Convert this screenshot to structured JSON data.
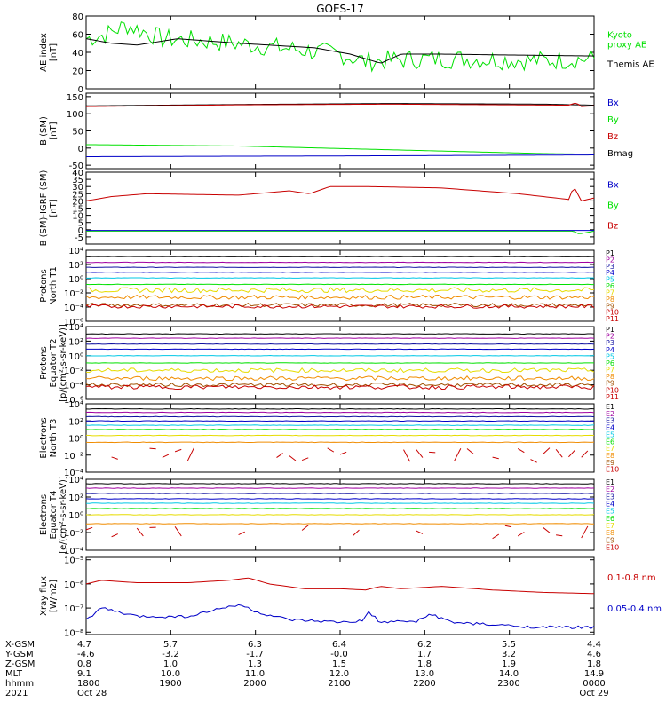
{
  "title": "GOES-17",
  "colors": {
    "black": "#000000",
    "green": "#00e000",
    "blue": "#0000c8",
    "red": "#c80000",
    "navy": "#1010a0",
    "cyan": "#00c8e6",
    "ltgreen": "#00e000",
    "yellow": "#e6dc00",
    "orange": "#f08c00",
    "brown": "#a05000",
    "purple": "#a000a0"
  },
  "chart_data": [
    {
      "type": "line",
      "id": "ae",
      "ylabel": [
        "AE index",
        "[nT]"
      ],
      "ylim": [
        0,
        80
      ],
      "yticks": [
        "0",
        "20",
        "40",
        "60",
        "80"
      ],
      "series": [
        {
          "name": "Kyoto proxy AE",
          "color": "green",
          "style": "noisy",
          "amp": 11,
          "knots": [
            [
              0,
              55
            ],
            [
              0.04,
              60
            ],
            [
              0.08,
              70
            ],
            [
              0.15,
              55
            ],
            [
              0.25,
              52
            ],
            [
              0.33,
              48
            ],
            [
              0.4,
              44
            ],
            [
              0.5,
              38
            ],
            [
              0.55,
              30
            ],
            [
              0.62,
              32
            ],
            [
              0.7,
              33
            ],
            [
              0.8,
              32
            ],
            [
              0.9,
              31
            ],
            [
              1,
              33
            ]
          ]
        },
        {
          "name": "Themis AE",
          "color": "black",
          "style": "smooth",
          "knots": [
            [
              0,
              55
            ],
            [
              0.05,
              50
            ],
            [
              0.1,
              48
            ],
            [
              0.18,
              55
            ],
            [
              0.3,
              50
            ],
            [
              0.45,
              45
            ],
            [
              0.52,
              38
            ],
            [
              0.58,
              28
            ],
            [
              0.62,
              38
            ],
            [
              0.7,
              38
            ],
            [
              0.85,
              37
            ],
            [
              1,
              36
            ]
          ]
        }
      ],
      "legend": [
        {
          "text": [
            "Kyoto",
            "proxy AE"
          ],
          "color": "green"
        },
        {
          "text": [
            "Themis AE"
          ],
          "color": "black"
        }
      ]
    },
    {
      "type": "line",
      "id": "bsm",
      "ylabel": [
        "B (SM)",
        "[nT]"
      ],
      "ylim": [
        -60,
        160
      ],
      "yticks": [
        "-50",
        "0",
        "50",
        "100",
        "150"
      ],
      "series": [
        {
          "name": "Bmag",
          "color": "black",
          "style": "smooth",
          "knots": [
            [
              0,
              123
            ],
            [
              0.3,
              127
            ],
            [
              0.6,
              130
            ],
            [
              0.9,
              128
            ],
            [
              1,
              125
            ]
          ]
        },
        {
          "name": "Bz",
          "color": "red",
          "style": "smooth",
          "knots": [
            [
              0,
              121
            ],
            [
              0.3,
              126
            ],
            [
              0.6,
              128
            ],
            [
              0.95,
              125
            ],
            [
              0.965,
              132
            ],
            [
              0.975,
              121
            ],
            [
              1,
              123
            ]
          ]
        },
        {
          "name": "By",
          "color": "green",
          "style": "smooth",
          "knots": [
            [
              0,
              10
            ],
            [
              0.3,
              6
            ],
            [
              0.6,
              -5
            ],
            [
              0.9,
              -16
            ],
            [
              1,
              -18
            ]
          ]
        },
        {
          "name": "Bx",
          "color": "blue",
          "style": "smooth",
          "knots": [
            [
              0,
              -25
            ],
            [
              0.5,
              -23
            ],
            [
              1,
              -20
            ]
          ]
        }
      ],
      "legend": [
        {
          "text": [
            "Bx"
          ],
          "color": "blue"
        },
        {
          "text": [
            "By"
          ],
          "color": "green"
        },
        {
          "text": [
            "Bz"
          ],
          "color": "red"
        },
        {
          "text": [
            "Bmag"
          ],
          "color": "black"
        }
      ]
    },
    {
      "type": "line",
      "id": "bigrf",
      "ylabel": [
        "B (SM)-IGRF (SM)",
        "[nT]"
      ],
      "ylim": [
        -10,
        40
      ],
      "yticks": [
        "-5",
        "0",
        "5",
        "10",
        "15",
        "20",
        "25",
        "30",
        "35",
        "40"
      ],
      "series": [
        {
          "name": "Bz",
          "color": "red",
          "style": "smooth",
          "knots": [
            [
              0,
              20
            ],
            [
              0.05,
              23
            ],
            [
              0.12,
              25
            ],
            [
              0.3,
              24
            ],
            [
              0.4,
              27
            ],
            [
              0.44,
              25
            ],
            [
              0.48,
              30
            ],
            [
              0.55,
              30
            ],
            [
              0.7,
              29
            ],
            [
              0.85,
              25
            ],
            [
              0.95,
              21
            ],
            [
              0.96,
              30
            ],
            [
              0.975,
              20
            ],
            [
              1,
              22
            ]
          ]
        },
        {
          "name": "By",
          "color": "green",
          "style": "smooth",
          "knots": [
            [
              0,
              -1
            ],
            [
              0.5,
              -1
            ],
            [
              0.96,
              -1
            ],
            [
              0.97,
              -3
            ],
            [
              1,
              -1
            ]
          ]
        },
        {
          "name": "Bx",
          "color": "blue",
          "style": "smooth",
          "knots": [
            [
              0,
              -0.5
            ],
            [
              1,
              -0.5
            ]
          ]
        }
      ],
      "legend": [
        {
          "text": [
            "Bx"
          ],
          "color": "blue"
        },
        {
          "text": [
            "By"
          ],
          "color": "green"
        },
        {
          "text": [
            "Bz"
          ],
          "color": "red"
        }
      ]
    },
    {
      "type": "line",
      "id": "pn",
      "log": true,
      "ylabel": [
        "Protons",
        "North T1"
      ],
      "ylim": [
        -6,
        4
      ],
      "yticks": [
        "10⁴",
        "10²",
        "10⁰",
        "10⁻²",
        "10⁻⁴",
        "10⁻⁶"
      ],
      "series": [
        {
          "name": "P1",
          "color": "black",
          "level": 3.1
        },
        {
          "name": "P2",
          "color": "purple",
          "level": 2.3
        },
        {
          "name": "P3",
          "color": "navy",
          "level": 1.6
        },
        {
          "name": "P4",
          "color": "blue",
          "level": 0.9
        },
        {
          "name": "P5",
          "color": "cyan",
          "level": 0.1
        },
        {
          "name": "P6",
          "color": "ltgreen",
          "level": -0.8
        },
        {
          "name": "P7",
          "color": "yellow",
          "level": -1.6,
          "jitter": 0.35
        },
        {
          "name": "P8",
          "color": "orange",
          "level": -2.6,
          "jitter": 0.3
        },
        {
          "name": "P9",
          "color": "brown",
          "level": -3.7,
          "jitter": 0.25
        },
        {
          "name": "P10",
          "color": "red",
          "level": -3.9,
          "jitter": 0.25
        }
      ],
      "labels": [
        "P1",
        "P2",
        "P3",
        "P4",
        "P5",
        "P6",
        "P7",
        "P8",
        "P9",
        "P10",
        "P11"
      ]
    },
    {
      "type": "line",
      "id": "pe",
      "log": true,
      "ylabel": [
        "Protons",
        "Equator T2",
        "[p/(cm²-s-sr-keV)]"
      ],
      "ylim": [
        -6,
        4
      ],
      "yticks": [
        "10⁴",
        "10²",
        "10⁰",
        "10⁻²",
        "10⁻⁴",
        "10⁻⁶"
      ],
      "series": [
        {
          "name": "P1",
          "color": "black",
          "level": 3.0
        },
        {
          "name": "P2",
          "color": "purple",
          "level": 2.4
        },
        {
          "name": "P3",
          "color": "navy",
          "level": 1.6
        },
        {
          "name": "P4",
          "color": "blue",
          "level": 0.9
        },
        {
          "name": "P5",
          "color": "cyan",
          "level": 0.0
        },
        {
          "name": "P6",
          "color": "ltgreen",
          "level": -1.0
        },
        {
          "name": "P7",
          "color": "yellow",
          "level": -2.0,
          "jitter": 0.3
        },
        {
          "name": "P8",
          "color": "orange",
          "level": -3.1,
          "jitter": 0.3
        },
        {
          "name": "P9",
          "color": "brown",
          "level": -4.0,
          "jitter": 0.25
        },
        {
          "name": "P10",
          "color": "red",
          "level": -4.3,
          "jitter": 0.3
        }
      ],
      "labels": [
        "P1",
        "P2",
        "P3",
        "P4",
        "P5",
        "P6",
        "P7",
        "P8",
        "P9",
        "P10",
        "P11"
      ]
    },
    {
      "type": "line",
      "id": "en",
      "log": true,
      "ylabel": [
        "Electrons",
        "North T3"
      ],
      "ylim": [
        -4,
        4
      ],
      "yticks": [
        "10⁴",
        "10²",
        "10⁰",
        "10⁻²",
        "10⁻⁴"
      ],
      "series": [
        {
          "name": "E1",
          "color": "black",
          "level": 3.4
        },
        {
          "name": "E2",
          "color": "purple",
          "level": 3.0
        },
        {
          "name": "E3",
          "color": "navy",
          "level": 2.5
        },
        {
          "name": "E4",
          "color": "blue",
          "level": 2.0
        },
        {
          "name": "E5",
          "color": "cyan",
          "level": 1.5
        },
        {
          "name": "E6",
          "color": "ltgreen",
          "level": 1.0
        },
        {
          "name": "E7",
          "color": "yellow",
          "level": 0.3
        },
        {
          "name": "E8",
          "color": "orange",
          "level": -0.5
        },
        {
          "name": "E9",
          "color": "red",
          "level": -2.0,
          "jitter": 0.9,
          "gaps": true
        }
      ],
      "labels": [
        "E1",
        "E2",
        "E3",
        "E4",
        "E5",
        "E6",
        "E7",
        "E8",
        "E9",
        "E10"
      ]
    },
    {
      "type": "line",
      "id": "ee",
      "log": true,
      "ylabel": [
        "Electrons",
        "Equator T4",
        "[e/(cm²-s-sr-keV)]"
      ],
      "ylim": [
        -4,
        4
      ],
      "yticks": [
        "10⁴",
        "10²",
        "10⁰",
        "10⁻²",
        "10⁻⁴"
      ],
      "series": [
        {
          "name": "E1",
          "color": "black",
          "level": 3.5
        },
        {
          "name": "E2",
          "color": "purple",
          "level": 3.0
        },
        {
          "name": "E3",
          "color": "navy",
          "level": 2.4
        },
        {
          "name": "E4",
          "color": "blue",
          "level": 1.8
        },
        {
          "name": "E5",
          "color": "cyan",
          "level": 1.3
        },
        {
          "name": "E6",
          "color": "ltgreen",
          "level": 0.7
        },
        {
          "name": "E7",
          "color": "yellow",
          "level": 0.0
        },
        {
          "name": "E8",
          "color": "orange",
          "level": -1.0
        },
        {
          "name": "E9",
          "color": "red",
          "level": -1.9,
          "jitter": 0.8,
          "gaps": true
        }
      ],
      "labels": [
        "E1",
        "E2",
        "E3",
        "E4",
        "E5",
        "E6",
        "E7",
        "E8",
        "E9",
        "E10"
      ]
    },
    {
      "type": "line",
      "id": "xray",
      "log": true,
      "ylabel": [
        "Xray flux",
        "[W/m2]"
      ],
      "ylim": [
        -8.1,
        -4.9
      ],
      "yticks": [
        "10⁻⁵",
        "10⁻⁶",
        "10⁻⁷",
        "10⁻⁸"
      ],
      "ytickvals": [
        -5,
        -6,
        -7,
        -8
      ],
      "series": [
        {
          "name": "0.1-0.8 nm",
          "color": "red",
          "style": "smooth",
          "knots": [
            [
              0,
              -6.0
            ],
            [
              0.03,
              -5.85
            ],
            [
              0.1,
              -5.95
            ],
            [
              0.2,
              -5.95
            ],
            [
              0.28,
              -5.85
            ],
            [
              0.32,
              -5.75
            ],
            [
              0.36,
              -6.0
            ],
            [
              0.43,
              -6.2
            ],
            [
              0.5,
              -6.2
            ],
            [
              0.55,
              -6.25
            ],
            [
              0.58,
              -6.1
            ],
            [
              0.62,
              -6.2
            ],
            [
              0.7,
              -6.1
            ],
            [
              0.8,
              -6.25
            ],
            [
              0.9,
              -6.35
            ],
            [
              1,
              -6.4
            ]
          ]
        },
        {
          "name": "0.05-0.4 nm",
          "color": "blue",
          "style": "noisy",
          "amp": 0.06,
          "knots": [
            [
              0,
              -7.5
            ],
            [
              0.03,
              -7.0
            ],
            [
              0.1,
              -7.35
            ],
            [
              0.2,
              -7.35
            ],
            [
              0.26,
              -7.05
            ],
            [
              0.3,
              -6.85
            ],
            [
              0.34,
              -7.2
            ],
            [
              0.4,
              -7.5
            ],
            [
              0.5,
              -7.6
            ],
            [
              0.545,
              -7.55
            ],
            [
              0.555,
              -7.15
            ],
            [
              0.58,
              -7.6
            ],
            [
              0.65,
              -7.55
            ],
            [
              0.68,
              -7.25
            ],
            [
              0.72,
              -7.6
            ],
            [
              0.8,
              -7.7
            ],
            [
              0.9,
              -7.8
            ],
            [
              1,
              -7.8
            ]
          ]
        }
      ],
      "legend": [
        {
          "text": [
            "0.1-0.8 nm"
          ],
          "color": "red"
        },
        {
          "text": [
            "0.05-0.4 nm"
          ],
          "color": "blue"
        }
      ]
    }
  ],
  "orbit": {
    "rows": [
      {
        "label": "X-GSM",
        "values": [
          "4.7",
          "5.7",
          "6.3",
          "6.4",
          "6.2",
          "5.5",
          "4.4"
        ]
      },
      {
        "label": "Y-GSM",
        "values": [
          "-4.6",
          "-3.2",
          "-1.7",
          "-0.0",
          "1.7",
          "3.2",
          "4.6"
        ]
      },
      {
        "label": "Z-GSM",
        "values": [
          "0.8",
          "1.0",
          "1.3",
          "1.5",
          "1.8",
          "1.9",
          "1.8"
        ]
      },
      {
        "label": "MLT",
        "values": [
          "9.1",
          "10.0",
          "11.0",
          "12.0",
          "13.0",
          "14.0",
          "14.9"
        ]
      },
      {
        "label": "hhmm",
        "values": [
          "1800",
          "1900",
          "2000",
          "2100",
          "2200",
          "2300",
          "0000"
        ]
      },
      {
        "label": "2021",
        "values": [
          "Oct 28",
          "",
          "",
          "",
          "",
          "",
          "Oct 29"
        ]
      }
    ]
  }
}
